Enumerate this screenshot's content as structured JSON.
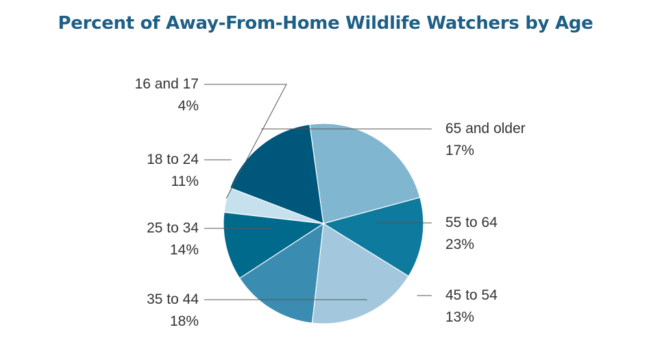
{
  "chart_data": {
    "type": "pie",
    "title": "Percent of Away-From-Home Wildlife Watchers by Age",
    "title_color": "#1e5f86",
    "start_category": "65 and older",
    "direction": "clockwise",
    "slices": [
      {
        "label": "65 and older",
        "value": 17,
        "value_label": "17%",
        "color": "#00577c"
      },
      {
        "label": "55 to 64",
        "value": 23,
        "value_label": "23%",
        "color": "#80b6d0"
      },
      {
        "label": "45 to 54",
        "value": 13,
        "value_label": "13%",
        "color": "#0d7a9e"
      },
      {
        "label": "35 to 44",
        "value": 18,
        "value_label": "18%",
        "color": "#a3c7dc"
      },
      {
        "label": "25 to 34",
        "value": 14,
        "value_label": "14%",
        "color": "#3a8cb1"
      },
      {
        "label": "18 to 24",
        "value": 11,
        "value_label": "11%",
        "color": "#006a8d"
      },
      {
        "label": "16 and 17",
        "value": 4,
        "value_label": "4%",
        "color": "#c6e0ee"
      }
    ]
  }
}
